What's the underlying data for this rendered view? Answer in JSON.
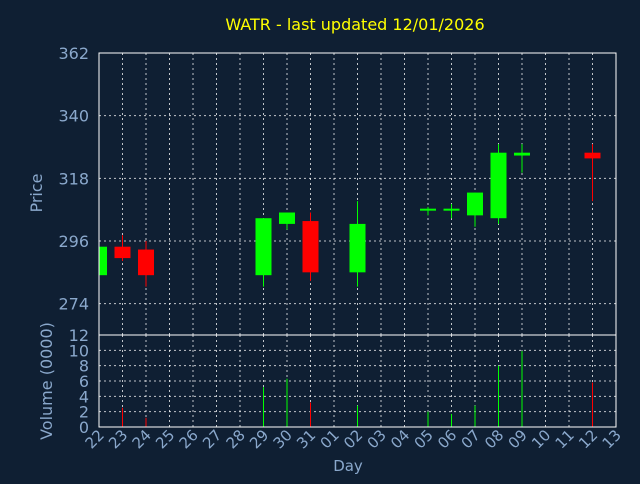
{
  "title": "WATR - last updated 12/01/2026",
  "colors": {
    "background": "#0f1f33",
    "axis_text": "#8aa8cc",
    "title_text": "#ffff00",
    "grid": "#ffffff",
    "frame": "#ffffff",
    "up": "#00ff00",
    "down": "#ff0000"
  },
  "chart_data": [
    {
      "type": "candlestick",
      "ylabel": "Price",
      "ylim": [
        263,
        362
      ],
      "yticks": [
        274,
        296,
        318,
        340,
        362
      ],
      "grid": true,
      "categories": [
        "22",
        "23",
        "24",
        "25",
        "26",
        "27",
        "28",
        "29",
        "30",
        "31",
        "01",
        "02",
        "03",
        "04",
        "05",
        "06",
        "07",
        "08",
        "09",
        "10",
        "11",
        "12",
        "13"
      ],
      "candles": [
        {
          "day": "22",
          "open": 284,
          "high": 294,
          "low": 284,
          "close": 294
        },
        {
          "day": "23",
          "open": 294,
          "high": 298,
          "low": 289,
          "close": 290
        },
        {
          "day": "24",
          "open": 293,
          "high": 296,
          "low": 280,
          "close": 284
        },
        {
          "day": "29",
          "open": 284,
          "high": 304,
          "low": 280,
          "close": 304
        },
        {
          "day": "30",
          "open": 302,
          "high": 306,
          "low": 300,
          "close": 306
        },
        {
          "day": "31",
          "open": 303,
          "high": 306,
          "low": 282,
          "close": 285
        },
        {
          "day": "02",
          "open": 285,
          "high": 310,
          "low": 280,
          "close": 302
        },
        {
          "day": "05",
          "open": 307,
          "high": 308,
          "low": 305,
          "close": 307
        },
        {
          "day": "06",
          "open": 307,
          "high": 309,
          "low": 304,
          "close": 307
        },
        {
          "day": "07",
          "open": 305,
          "high": 313,
          "low": 301,
          "close": 313
        },
        {
          "day": "08",
          "open": 304,
          "high": 330,
          "low": 302,
          "close": 327
        },
        {
          "day": "09",
          "open": 326,
          "high": 330,
          "low": 320,
          "close": 327
        },
        {
          "day": "12",
          "open": 327,
          "high": 330,
          "low": 310,
          "close": 325
        }
      ]
    },
    {
      "type": "bar",
      "xlabel": "Day",
      "ylabel": "Volume (0000)",
      "ylim": [
        0,
        12
      ],
      "yticks": [
        0,
        2,
        4,
        6,
        8,
        10,
        12
      ],
      "grid": true,
      "categories": [
        "22",
        "23",
        "24",
        "25",
        "26",
        "27",
        "28",
        "29",
        "30",
        "31",
        "01",
        "02",
        "03",
        "04",
        "05",
        "06",
        "07",
        "08",
        "09",
        "10",
        "11",
        "12",
        "13"
      ],
      "volumes": [
        {
          "day": "22",
          "value": 0.3,
          "direction": "up"
        },
        {
          "day": "23",
          "value": 2.5,
          "direction": "down"
        },
        {
          "day": "24",
          "value": 1.2,
          "direction": "down"
        },
        {
          "day": "29",
          "value": 5.2,
          "direction": "up"
        },
        {
          "day": "30",
          "value": 6.3,
          "direction": "up"
        },
        {
          "day": "31",
          "value": 3.2,
          "direction": "down"
        },
        {
          "day": "02",
          "value": 2.8,
          "direction": "up"
        },
        {
          "day": "05",
          "value": 2.0,
          "direction": "up"
        },
        {
          "day": "06",
          "value": 1.7,
          "direction": "up"
        },
        {
          "day": "07",
          "value": 2.8,
          "direction": "up"
        },
        {
          "day": "08",
          "value": 8.0,
          "direction": "up"
        },
        {
          "day": "09",
          "value": 9.9,
          "direction": "up"
        },
        {
          "day": "12",
          "value": 5.8,
          "direction": "down"
        }
      ]
    }
  ]
}
